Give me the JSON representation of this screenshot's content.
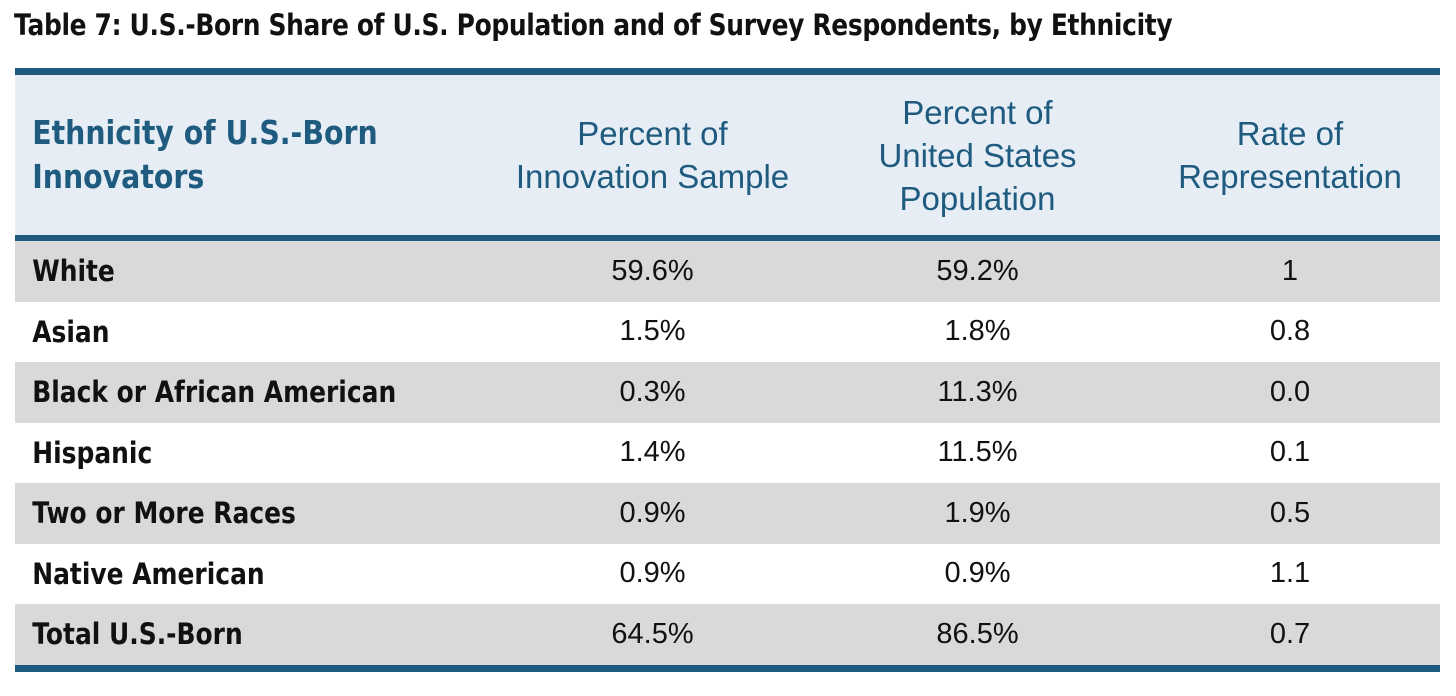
{
  "caption": "Table 7: U.S.-Born Share of U.S. Population and of Survey Respondents, by Ethnicity",
  "colors": {
    "rule": "#1e5b7f",
    "header_bg": "#e6edf5",
    "header_text": "#1e5b7f",
    "row_shade": "#d9d9d9"
  },
  "table": {
    "headers": {
      "ethnicity": [
        "Ethnicity of U.S.-Born",
        "Innovators"
      ],
      "sample": [
        "Percent of",
        "Innovation Sample"
      ],
      "population": [
        "Percent of",
        "United States",
        "Population"
      ],
      "rate": [
        "Rate of",
        "Representation"
      ]
    },
    "rows": [
      {
        "ethnicity": "White",
        "sample": "59.6%",
        "population": "59.2%",
        "rate": "1"
      },
      {
        "ethnicity": "Asian",
        "sample": "1.5%",
        "population": "1.8%",
        "rate": "0.8"
      },
      {
        "ethnicity": "Black or African American",
        "sample": "0.3%",
        "population": "11.3%",
        "rate": "0.0"
      },
      {
        "ethnicity": "Hispanic",
        "sample": "1.4%",
        "population": "11.5%",
        "rate": "0.1"
      },
      {
        "ethnicity": "Two or More Races",
        "sample": "0.9%",
        "population": "1.9%",
        "rate": "0.5"
      },
      {
        "ethnicity": "Native American",
        "sample": "0.9%",
        "population": "0.9%",
        "rate": "1.1"
      },
      {
        "ethnicity": "Total U.S.-Born",
        "sample": "64.5%",
        "population": "86.5%",
        "rate": "0.7"
      }
    ]
  }
}
